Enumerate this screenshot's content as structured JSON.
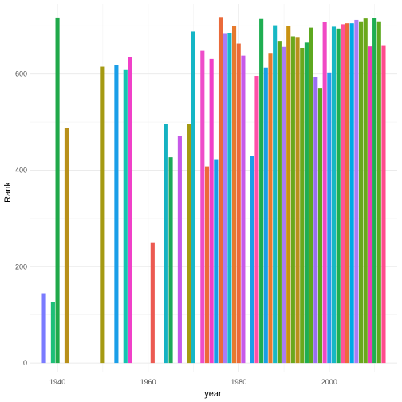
{
  "chart_data": {
    "type": "bar",
    "xlabel": "year",
    "ylabel": "Rank",
    "xlim": [
      1934,
      2015
    ],
    "ylim": [
      -18,
      745
    ],
    "x_ticks": [
      1940,
      1960,
      1980,
      2000
    ],
    "x_tick_labels": [
      "1940",
      "1960",
      "1980",
      "2000"
    ],
    "y_ticks": [
      0,
      200,
      400,
      600
    ],
    "y_tick_labels": [
      "0",
      "200",
      "400",
      "600"
    ],
    "legend": "none",
    "grid": true,
    "palette": [
      "#F8766D",
      "#E58700",
      "#C99800",
      "#A3A500",
      "#6BB100",
      "#00BA38",
      "#00BF7D",
      "#00C0AF",
      "#00BCD8",
      "#00B0F6",
      "#619CFF",
      "#B983FF",
      "#E76BF3",
      "#FD61D1",
      "#FF67A4"
    ],
    "bars": [
      {
        "x": 1937,
        "y": 145,
        "color": "#7a7bff"
      },
      {
        "x": 1939,
        "y": 127,
        "color": "#1dbf78"
      },
      {
        "x": 1940,
        "y": 717,
        "color": "#20a94a"
      },
      {
        "x": 1942,
        "y": 487,
        "color": "#b8901a"
      },
      {
        "x": 1950,
        "y": 615,
        "color": "#a59a12"
      },
      {
        "x": 1953,
        "y": 618,
        "color": "#1a9ee8"
      },
      {
        "x": 1955,
        "y": 608,
        "color": "#15c4b0"
      },
      {
        "x": 1956,
        "y": 635,
        "color": "#f040c8"
      },
      {
        "x": 1961,
        "y": 249,
        "color": "#ec5a52"
      },
      {
        "x": 1964,
        "y": 496,
        "color": "#15b2c2"
      },
      {
        "x": 1965,
        "y": 427,
        "color": "#1da85a"
      },
      {
        "x": 1967,
        "y": 471,
        "color": "#c759e9"
      },
      {
        "x": 1969,
        "y": 496,
        "color": "#a59a12"
      },
      {
        "x": 1970,
        "y": 688,
        "color": "#15b6c6"
      },
      {
        "x": 1972,
        "y": 648,
        "color": "#ee4dc9"
      },
      {
        "x": 1973,
        "y": 408,
        "color": "#ec6a3a"
      },
      {
        "x": 1974,
        "y": 631,
        "color": "#f040c8"
      },
      {
        "x": 1975,
        "y": 423,
        "color": "#199ee6"
      },
      {
        "x": 1976,
        "y": 718,
        "color": "#ea6a3a"
      },
      {
        "x": 1977,
        "y": 683,
        "color": "#a97cf6"
      },
      {
        "x": 1978,
        "y": 685,
        "color": "#18b8c8"
      },
      {
        "x": 1979,
        "y": 700,
        "color": "#e77a2d"
      },
      {
        "x": 1980,
        "y": 663,
        "color": "#ea6a3a"
      },
      {
        "x": 1981,
        "y": 638,
        "color": "#c759e9"
      },
      {
        "x": 1983,
        "y": 430,
        "color": "#1a9ee8"
      },
      {
        "x": 1984,
        "y": 596,
        "color": "#fd4fa8"
      },
      {
        "x": 1985,
        "y": 714,
        "color": "#1fae52"
      },
      {
        "x": 1986,
        "y": 613,
        "color": "#199ee6"
      },
      {
        "x": 1987,
        "y": 642,
        "color": "#e77a2d"
      },
      {
        "x": 1988,
        "y": 701,
        "color": "#17b8c4"
      },
      {
        "x": 1989,
        "y": 667,
        "color": "#5da81f"
      },
      {
        "x": 1990,
        "y": 656,
        "color": "#a97cf6"
      },
      {
        "x": 1991,
        "y": 700,
        "color": "#c99212"
      },
      {
        "x": 1992,
        "y": 678,
        "color": "#6aa81c"
      },
      {
        "x": 1993,
        "y": 675,
        "color": "#b8901a"
      },
      {
        "x": 1994,
        "y": 654,
        "color": "#6aa81c"
      },
      {
        "x": 1995,
        "y": 665,
        "color": "#1fae52"
      },
      {
        "x": 1996,
        "y": 696,
        "color": "#5da81f"
      },
      {
        "x": 1997,
        "y": 594,
        "color": "#9a6ef3"
      },
      {
        "x": 1998,
        "y": 571,
        "color": "#5da81f"
      },
      {
        "x": 1999,
        "y": 708,
        "color": "#f048c4"
      },
      {
        "x": 2000,
        "y": 603,
        "color": "#2a9bef"
      },
      {
        "x": 2001,
        "y": 698,
        "color": "#17b8c4"
      },
      {
        "x": 2002,
        "y": 694,
        "color": "#1fae52"
      },
      {
        "x": 2003,
        "y": 703,
        "color": "#ff5297"
      },
      {
        "x": 2004,
        "y": 705,
        "color": "#ec6a3a"
      },
      {
        "x": 2005,
        "y": 705,
        "color": "#00a8e6"
      },
      {
        "x": 2006,
        "y": 712,
        "color": "#a97cf6"
      },
      {
        "x": 2007,
        "y": 709,
        "color": "#6aa81c"
      },
      {
        "x": 2008,
        "y": 715,
        "color": "#6aa81c"
      },
      {
        "x": 2009,
        "y": 657,
        "color": "#ec3db8"
      },
      {
        "x": 2010,
        "y": 716,
        "color": "#1fae52"
      },
      {
        "x": 2011,
        "y": 709,
        "color": "#5da81f"
      },
      {
        "x": 2012,
        "y": 658,
        "color": "#ff4c8c"
      }
    ]
  }
}
